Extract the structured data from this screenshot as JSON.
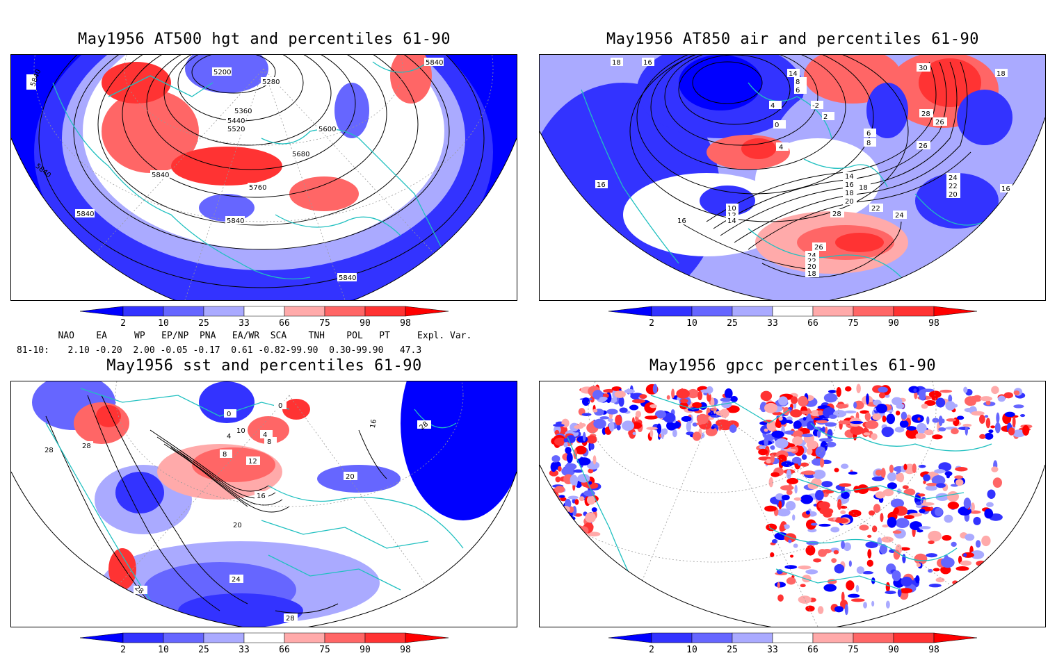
{
  "panels": [
    {
      "id": "p1",
      "title": "May1956 AT500 hgt and percentiles 61-90",
      "contour_labels": [
        "5840",
        "5840",
        "5840",
        "5840",
        "5200",
        "5280",
        "5360",
        "5440",
        "5520",
        "5600",
        "5680",
        "5840",
        "5760",
        "5840",
        "5840",
        "5840"
      ]
    },
    {
      "id": "p2",
      "title": "May1956 AT850 air and percentiles 61-90",
      "contour_labels": [
        "18",
        "16",
        "14",
        "6",
        "8",
        "6",
        "4",
        "2",
        "-2",
        "0",
        "4",
        "6",
        "8",
        "30",
        "28",
        "26",
        "18",
        "26",
        "24",
        "22",
        "20",
        "16",
        "14",
        "16",
        "18",
        "20",
        "22",
        "24",
        "26",
        "18",
        "16",
        "16",
        "10",
        "12",
        "14",
        "28",
        "26",
        "24",
        "22",
        "20",
        "18"
      ]
    },
    {
      "id": "p3",
      "title": "May1956 sst and percentiles 61-90",
      "contour_labels": [
        "28",
        "28",
        "0",
        "0",
        "4",
        "10",
        "4",
        "8",
        "8",
        "12",
        "16",
        "16",
        "20",
        "20",
        "24",
        "28",
        "28",
        "28"
      ]
    },
    {
      "id": "p4",
      "title": "May1956 gpcc percentiles 61-90",
      "contour_labels": []
    }
  ],
  "colorbar": {
    "labels": [
      "2",
      "10",
      "25",
      "33",
      "66",
      "75",
      "90",
      "98"
    ],
    "colors": [
      "#0000ff",
      "#3333ff",
      "#6666ff",
      "#aaaaff",
      "#ffffff",
      "#ffaaaa",
      "#ff6666",
      "#ff3333",
      "#ff0000"
    ]
  },
  "indices": {
    "header": "   NAO    EA     WP   EP/NP  PNA   EA/WR  SCA    TNH    POL   PT     Expl. Var.",
    "row_label": "81-10:",
    "values": "   2.10 -0.20  2.00 -0.05 -0.17  0.61 -0.82-99.90  0.30-99.90   47.3"
  }
}
